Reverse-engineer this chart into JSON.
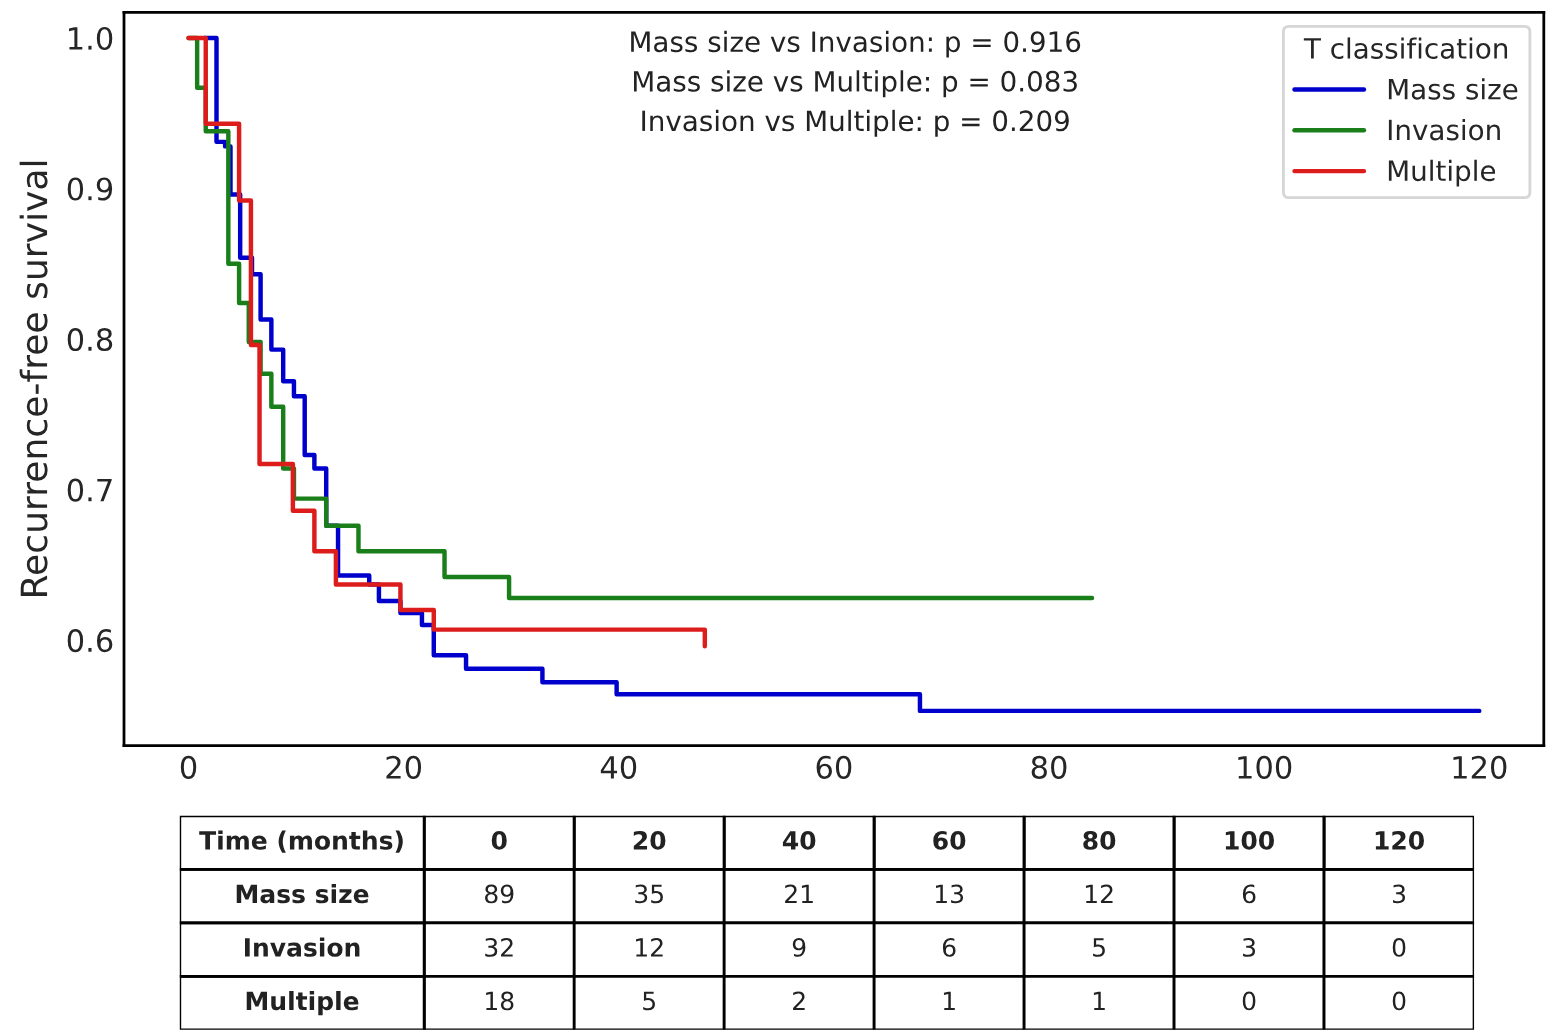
{
  "chart_data": [
    {
      "type": "step",
      "ylabel": "Recurrence-free survival",
      "legend_title": "T classification",
      "legend": "top right",
      "grid": false,
      "annotations": [
        "Mass size vs Invasion: p = 0.916",
        "Mass size vs Multiple: p = 0.083",
        "Invasion vs Multiple: p = 0.209"
      ],
      "xlim": [
        -6,
        126
      ],
      "ylim": [
        0.53,
        1.017
      ],
      "xticks": [
        0,
        20,
        40,
        60,
        80,
        100,
        120
      ],
      "yticks": [
        0.6,
        0.7,
        0.8,
        0.9,
        {
          "value": 1.0,
          "label": "1.0"
        }
      ],
      "series": [
        {
          "name": "Mass size",
          "color": "#0000cc",
          "x": [
            1.5,
            2.6,
            3.4,
            3.9,
            4.8,
            5.9,
            6.7,
            7.7,
            8.8,
            9.8,
            10.8,
            11.7,
            12.8,
            13.9,
            16.8,
            17.7,
            19.7,
            21.7,
            22.8,
            25.8,
            32.9,
            39.8,
            68.0,
            120
          ],
          "values": [
            1.0,
            0.931,
            0.928,
            0.896,
            0.854,
            0.843,
            0.813,
            0.793,
            0.772,
            0.762,
            0.723,
            0.714,
            0.676,
            0.643,
            0.637,
            0.626,
            0.618,
            0.61,
            0.59,
            0.581,
            0.572,
            0.564,
            0.553,
            0.553
          ]
        },
        {
          "name": "Invasion",
          "color": "#1a7f1a",
          "x": [
            0.0,
            0.8,
            1.6,
            3.7,
            4.7,
            5.6,
            6.7,
            7.7,
            8.8,
            9.8,
            12.8,
            15.8,
            23.8,
            29.8,
            84
          ],
          "values": [
            1.0,
            0.967,
            0.938,
            0.85,
            0.824,
            0.798,
            0.777,
            0.755,
            0.714,
            0.694,
            0.676,
            0.659,
            0.642,
            0.628,
            0.628
          ]
        },
        {
          "name": "Multiple",
          "color": "#dd1c1c",
          "x": [
            0.0,
            1.6,
            4.7,
            5.8,
            6.6,
            9.7,
            11.7,
            13.7,
            19.7,
            22.8,
            48
          ],
          "values": [
            1.0,
            0.943,
            0.892,
            0.796,
            0.717,
            0.686,
            0.659,
            0.637,
            0.62,
            0.607,
            0.596
          ]
        }
      ]
    },
    {
      "type": "heatmap",
      "title": "Time (months)",
      "categories": [
        "0",
        "20",
        "40",
        "60",
        "80",
        "100",
        "120"
      ],
      "y_categories": [
        "Mass size",
        "Invasion",
        "Multiple"
      ],
      "cells": [
        [
          "89",
          "35",
          "21",
          "13",
          "12",
          "6",
          "3"
        ],
        [
          "32",
          "12",
          "9",
          "6",
          "5",
          "3",
          "0"
        ],
        [
          "18",
          "5",
          "2",
          "1",
          "1",
          "0",
          "0"
        ]
      ]
    }
  ]
}
